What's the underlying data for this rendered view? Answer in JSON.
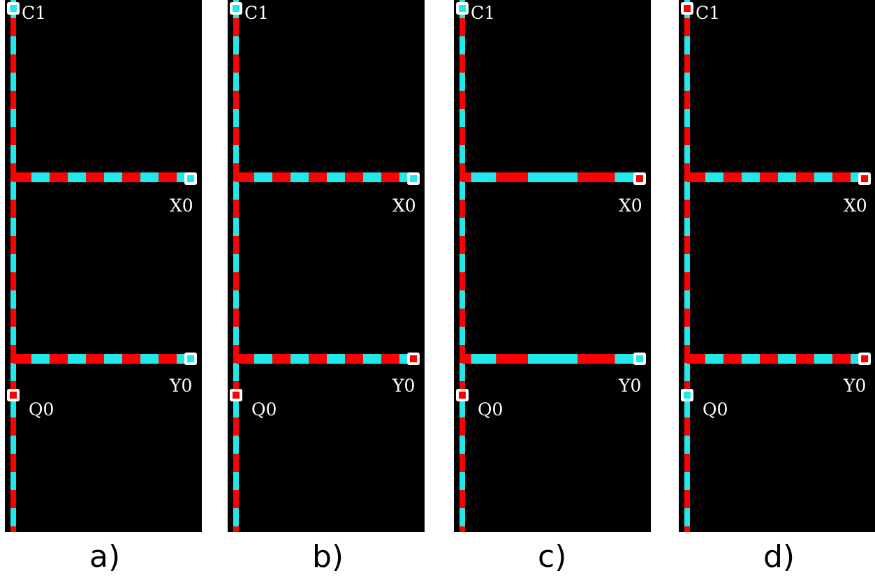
{
  "colors": {
    "background": "#000000",
    "wire_red": "#ff0000",
    "wire_cyan": "#22e8ea",
    "terminal_border": "#ffffff",
    "label": "#ffffff"
  },
  "panels": [
    {
      "caption": "a)",
      "labels": {
        "c1": "C1",
        "x0": "X0",
        "y0": "Y0",
        "q0": "Q0"
      },
      "terminals": {
        "c1": "cyan",
        "x0": "cyan",
        "y0": "cyan",
        "q0": "red"
      },
      "wires": {
        "vertical": "dashed",
        "x0": "dashed",
        "y0": "dashed"
      }
    },
    {
      "caption": "b)",
      "labels": {
        "c1": "C1",
        "x0": "X0",
        "y0": "Y0",
        "q0": "Q0"
      },
      "terminals": {
        "c1": "cyan",
        "x0": "cyan",
        "y0": "red",
        "q0": "red"
      },
      "wires": {
        "vertical": "dashed",
        "x0": "dashed",
        "y0": "dashed"
      }
    },
    {
      "caption": "c)",
      "labels": {
        "c1": "C1",
        "x0": "X0",
        "y0": "Y0",
        "q0": "Q0"
      },
      "terminals": {
        "c1": "cyan",
        "x0": "red",
        "y0": "cyan",
        "q0": "red"
      },
      "wires": {
        "vertical": "dashed",
        "x0": "long",
        "y0": "long"
      }
    },
    {
      "caption": "d)",
      "labels": {
        "c1": "C1",
        "x0": "X0",
        "y0": "Y0",
        "q0": "Q0"
      },
      "terminals": {
        "c1": "red",
        "x0": "red",
        "y0": "red",
        "q0": "cyan"
      },
      "wires": {
        "vertical": "dashed",
        "x0": "dashed",
        "y0": "dashed"
      }
    }
  ]
}
